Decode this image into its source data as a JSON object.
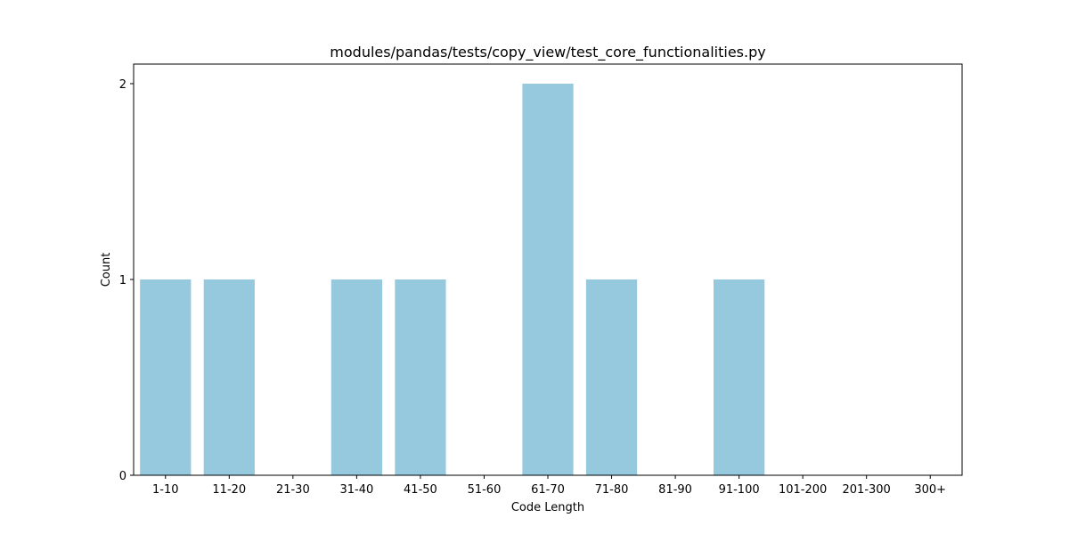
{
  "chart_data": {
    "type": "bar",
    "title": "modules/pandas/tests/copy_view/test_core_functionalities.py",
    "xlabel": "Code Length",
    "ylabel": "Count",
    "categories": [
      "1-10",
      "11-20",
      "21-30",
      "31-40",
      "41-50",
      "51-60",
      "61-70",
      "71-80",
      "81-90",
      "91-100",
      "101-200",
      "201-300",
      "300+"
    ],
    "values": [
      1,
      1,
      0,
      1,
      1,
      0,
      2,
      1,
      0,
      1,
      0,
      0,
      0
    ],
    "ylim": [
      0,
      2.1
    ],
    "yticks": [
      0,
      1,
      2
    ],
    "grid": false,
    "bar_color": "#96c9de"
  }
}
